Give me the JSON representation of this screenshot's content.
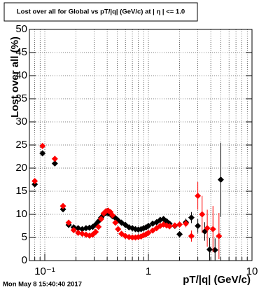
{
  "chart_data": {
    "type": "scatter",
    "title": "Lost over all for Global vs pT/|q| (GeV/c) at | η | <= 1.0",
    "x_label": "pT/|q| (GeV/c)",
    "y_label": "Lost over all (%)",
    "footer": "Mon May  8 15:40:40 2017",
    "xscale": "log",
    "xlim": [
      0.071,
      10
    ],
    "ylim": [
      0,
      50
    ],
    "xticks": [
      {
        "value": 0.1,
        "label": "10⁻¹"
      },
      1,
      10
    ],
    "xminor_ticks": [
      0.08,
      0.09,
      0.2,
      0.3,
      0.4,
      0.5,
      0.6,
      0.7,
      0.8,
      0.9,
      2,
      3,
      4,
      5,
      6,
      7,
      8,
      9
    ],
    "yticks": [
      0,
      5,
      10,
      15,
      20,
      25,
      30,
      35,
      40,
      45,
      50
    ],
    "grid": true,
    "series": [
      {
        "color": "#000000",
        "x": [
          0.08,
          0.095,
          0.125,
          0.15,
          0.17,
          0.19,
          0.21,
          0.23,
          0.25,
          0.27,
          0.29,
          0.31,
          0.33,
          0.35,
          0.37,
          0.39,
          0.41,
          0.43,
          0.45,
          0.48,
          0.51,
          0.55,
          0.6,
          0.65,
          0.7,
          0.75,
          0.8,
          0.85,
          0.9,
          0.95,
          1.0,
          1.1,
          1.2,
          1.3,
          1.4,
          1.5,
          1.6,
          1.8,
          2.0,
          2.3,
          2.6,
          3.0,
          3.5,
          3.9,
          4.4,
          5.0
        ],
        "values": [
          16.5,
          23.2,
          21,
          11.1,
          7.7,
          7.2,
          7,
          6.8,
          7,
          7.1,
          7.3,
          7.8,
          8.5,
          9.3,
          10,
          10.3,
          10.2,
          10,
          9.6,
          9.2,
          8.7,
          8.2,
          7.7,
          7.2,
          7,
          6.8,
          6.7,
          6.8,
          7,
          7.2,
          7.5,
          8,
          8.3,
          8.8,
          9,
          8.5,
          8,
          7.5,
          5.7,
          8.3,
          9.3,
          7.5,
          6.3,
          2.4,
          2.3,
          17.5
        ],
        "errors": [
          0.4,
          0.4,
          0.4,
          0.4,
          0.3,
          0.3,
          0.3,
          0.3,
          0.3,
          0.3,
          0.3,
          0.3,
          0.3,
          0.3,
          0.3,
          0.3,
          0.3,
          0.3,
          0.3,
          0.3,
          0.3,
          0.3,
          0.3,
          0.3,
          0.3,
          0.3,
          0.3,
          0.3,
          0.3,
          0.3,
          0.3,
          0.3,
          0.3,
          0.3,
          0.3,
          0.3,
          0.3,
          0.3,
          0.6,
          0.8,
          1.2,
          1.5,
          2,
          2.5,
          2.5,
          8
        ]
      },
      {
        "color": "#ff0000",
        "x": [
          0.08,
          0.095,
          0.125,
          0.15,
          0.17,
          0.19,
          0.21,
          0.23,
          0.25,
          0.27,
          0.29,
          0.31,
          0.33,
          0.35,
          0.37,
          0.39,
          0.41,
          0.43,
          0.45,
          0.48,
          0.51,
          0.55,
          0.6,
          0.65,
          0.7,
          0.75,
          0.8,
          0.85,
          0.9,
          0.95,
          1.0,
          1.1,
          1.2,
          1.3,
          1.4,
          1.5,
          1.6,
          1.8,
          2.0,
          2.3,
          2.6,
          3.0,
          3.3,
          3.7,
          4.2,
          4.8
        ],
        "values": [
          17.2,
          24.8,
          22,
          11.8,
          8.2,
          6.6,
          6,
          5.8,
          5.6,
          5.4,
          5.6,
          6.2,
          7.3,
          9,
          10.2,
          10.7,
          10.8,
          10.5,
          9.8,
          8.2,
          6.8,
          5.8,
          5.3,
          5.1,
          5,
          5,
          5.1,
          5.2,
          5.5,
          5.7,
          6,
          6.5,
          7,
          7.5,
          7.8,
          7.6,
          7.4,
          7.6,
          7.8,
          8,
          5.3,
          14,
          10,
          7,
          6.8,
          5.3
        ],
        "errors": [
          0.4,
          0.4,
          0.4,
          0.4,
          0.3,
          0.3,
          0.3,
          0.3,
          0.3,
          0.3,
          0.3,
          0.3,
          0.3,
          0.3,
          0.3,
          0.3,
          0.3,
          0.3,
          0.3,
          0.3,
          0.3,
          0.3,
          0.3,
          0.3,
          0.3,
          0.3,
          0.3,
          0.3,
          0.3,
          0.3,
          0.3,
          0.3,
          0.3,
          0.3,
          0.3,
          0.3,
          0.3,
          0.3,
          0.5,
          0.8,
          1.2,
          3,
          4,
          4,
          5,
          5
        ]
      }
    ]
  }
}
